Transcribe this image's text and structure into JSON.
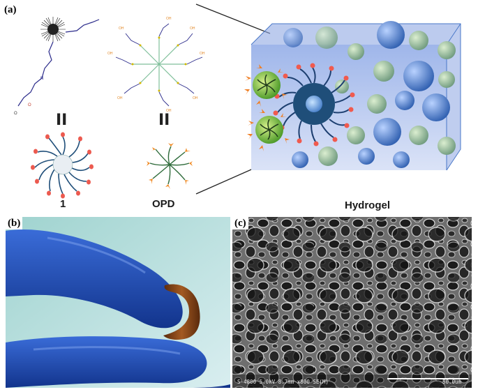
{
  "panels": {
    "a": {
      "label": "(a)",
      "captions": {
        "polymer": "1",
        "crosslinker": "OPD",
        "gel": "Hydrogel"
      }
    },
    "b": {
      "label": "(b)"
    },
    "c": {
      "label": "(c)",
      "sem_info": "S-4800 5.0kV 8.7mm x800 SE(M)",
      "scale_bar": "50.0um"
    }
  },
  "colors": {
    "polymer_arm": "#1f4e79",
    "polymer_tip": "#e8564a",
    "crosslinker_arm": "#2e6b3a",
    "crosslinker_tip": "#f08a24",
    "gel_blue": "#3d6fbf",
    "gel_green": "#6fa86a",
    "glove_blue": "#1d4fb8",
    "gel_brown": "#7a3a12"
  }
}
